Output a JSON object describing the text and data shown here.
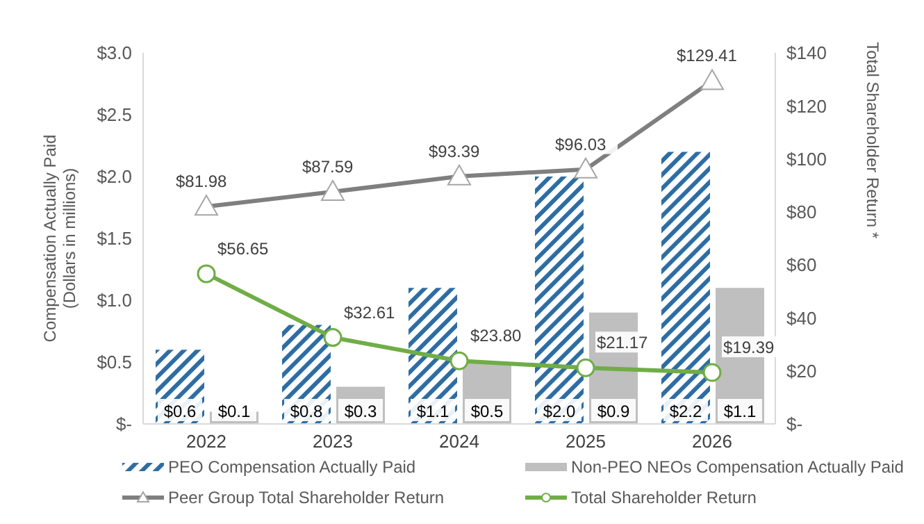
{
  "chart_data": {
    "type": "bar",
    "categories": [
      "2022",
      "2023",
      "2024",
      "2025",
      "2026"
    ],
    "ylabel": "Compensation Actually Paid\n(Dollars in millions)",
    "y2label": "Total Shareholder Return *",
    "ylim": [
      0,
      3
    ],
    "yticks": [
      {
        "value": 0,
        "label": "$-"
      },
      {
        "value": 0.5,
        "label": "$0.5"
      },
      {
        "value": 1,
        "label": "$1.0"
      },
      {
        "value": 1.5,
        "label": "$1.5"
      },
      {
        "value": 2,
        "label": "$2.0"
      },
      {
        "value": 2.5,
        "label": "$2.5"
      },
      {
        "value": 3,
        "label": "$3.0"
      }
    ],
    "y2lim": [
      0,
      140
    ],
    "y2ticks": [
      {
        "value": 0,
        "label": "$-"
      },
      {
        "value": 20,
        "label": "$20"
      },
      {
        "value": 40,
        "label": "$40"
      },
      {
        "value": 60,
        "label": "$60"
      },
      {
        "value": 80,
        "label": "$80"
      },
      {
        "value": 100,
        "label": "$100"
      },
      {
        "value": 120,
        "label": "$120"
      },
      {
        "value": 140,
        "label": "$140"
      }
    ],
    "legend": "bottom",
    "series": [
      {
        "name": "PEO Compensation Actually Paid",
        "color": "#2e6da4",
        "values": [
          0.6,
          0.8,
          1.1,
          2.0,
          2.2
        ],
        "value_labels": [
          "$0.6",
          "$0.8",
          "$1.1",
          "$2.0",
          "$2.2"
        ]
      },
      {
        "name": "Non-PEO NEOs Compensation Actually Paid",
        "color": "#bfbfbf",
        "values": [
          0.1,
          0.3,
          0.5,
          0.9,
          1.1
        ],
        "value_labels": [
          "$0.1",
          "$0.3",
          "$0.5",
          "$0.9",
          "$1.1"
        ]
      },
      {
        "name": "Peer Group Total Shareholder Return",
        "type": "line",
        "axis": "y2",
        "marker": "triangle",
        "color": "#7f7f7f",
        "values": [
          81.98,
          87.59,
          93.39,
          96.03,
          129.41
        ],
        "value_labels": [
          "$81.98",
          "$87.59",
          "$93.39",
          "$96.03",
          "$129.41"
        ]
      },
      {
        "name": "Total Shareholder Return",
        "type": "line",
        "axis": "y2",
        "marker": "circle",
        "color": "#70ad47",
        "values": [
          56.65,
          32.61,
          23.8,
          21.17,
          19.39
        ],
        "value_labels": [
          "$56.65",
          "$32.61",
          "$23.80",
          "$21.17",
          "$19.39"
        ]
      }
    ]
  }
}
